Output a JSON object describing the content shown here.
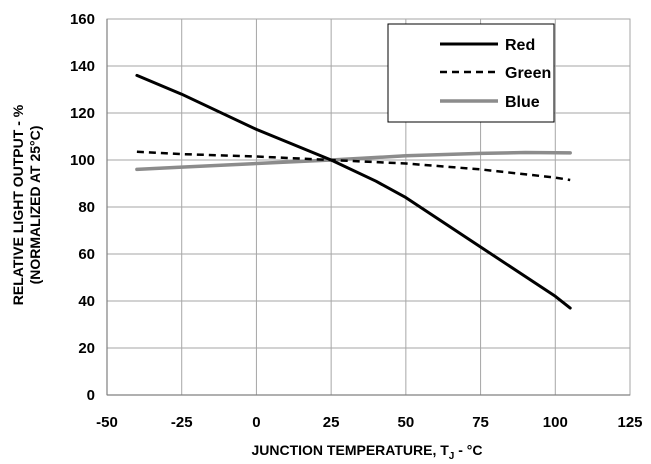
{
  "chart_data": {
    "type": "line",
    "title": "",
    "xlabel": "JUNCTION TEMPERATURE, T",
    "xlabel_subscript": "J",
    "xlabel_suffix": " - °C",
    "ylabel_line1": "RELATIVE LIGHT OUTPUT - %",
    "ylabel_line2": "(NORMALIZED AT 25°C)",
    "xlim": [
      -50,
      125
    ],
    "ylim": [
      0,
      160
    ],
    "x_ticks": [
      -50,
      -25,
      0,
      25,
      50,
      75,
      100,
      125
    ],
    "y_ticks": [
      0,
      20,
      40,
      60,
      80,
      100,
      120,
      140,
      160
    ],
    "grid": true,
    "legend_position": "top-right",
    "series": [
      {
        "name": "Red",
        "color": "#000000",
        "style": "solid",
        "x": [
          -40,
          -25,
          0,
          25,
          40,
          50,
          75,
          100,
          105
        ],
        "y": [
          136,
          128,
          113,
          100,
          91,
          84,
          63,
          42,
          37
        ]
      },
      {
        "name": "Green",
        "color": "#000000",
        "style": "dashed",
        "x": [
          -40,
          -25,
          0,
          25,
          50,
          75,
          100,
          105
        ],
        "y": [
          103.5,
          102.5,
          101.5,
          100,
          98.5,
          96,
          92.5,
          91.5
        ]
      },
      {
        "name": "Blue",
        "color": "#8c8c8c",
        "style": "solid",
        "x": [
          -40,
          -25,
          0,
          25,
          50,
          75,
          90,
          105
        ],
        "y": [
          96,
          97,
          98.5,
          100,
          101.8,
          102.8,
          103.2,
          103
        ]
      }
    ]
  }
}
